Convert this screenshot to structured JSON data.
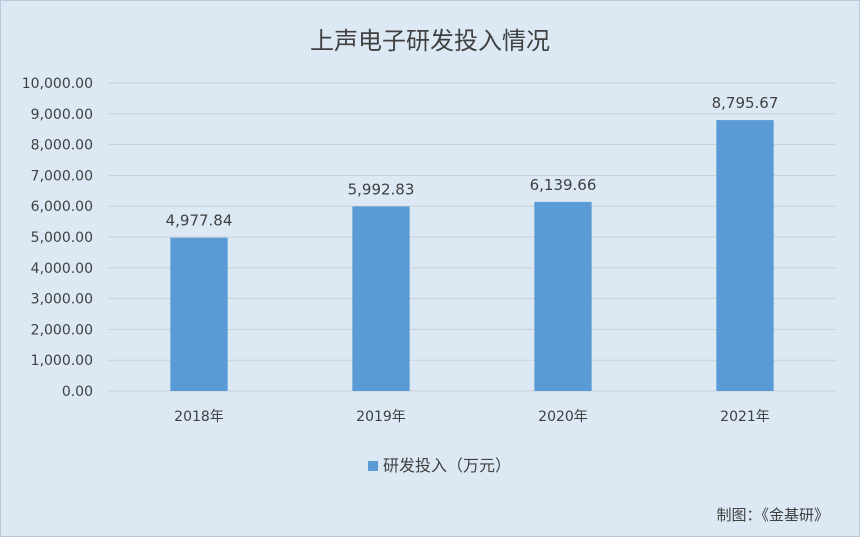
{
  "chart_data": {
    "type": "bar",
    "title": "上声电子研发投入情况",
    "categories": [
      "2018年",
      "2019年",
      "2020年",
      "2021年"
    ],
    "series": [
      {
        "name": "研发投入（万元）",
        "values": [
          4977.84,
          5992.83,
          6139.66,
          8795.67
        ],
        "labels": [
          "4,977.84",
          "5,992.83",
          "6,139.66",
          "8,795.67"
        ]
      }
    ],
    "y_ticks": [
      "0.00",
      "1,000.00",
      "2,000.00",
      "3,000.00",
      "4,000.00",
      "5,000.00",
      "6,000.00",
      "7,000.00",
      "8,000.00",
      "9,000.00",
      "10,000.00"
    ],
    "ylim": [
      0,
      10000
    ],
    "grid": true,
    "legend_position": "bottom",
    "colors": {
      "bar": "#5b9bd5",
      "gridline": "#c9cfd6",
      "background": "#dce9f5",
      "text": "#404040"
    }
  },
  "footer": {
    "credit": "制图：《金基研》"
  }
}
